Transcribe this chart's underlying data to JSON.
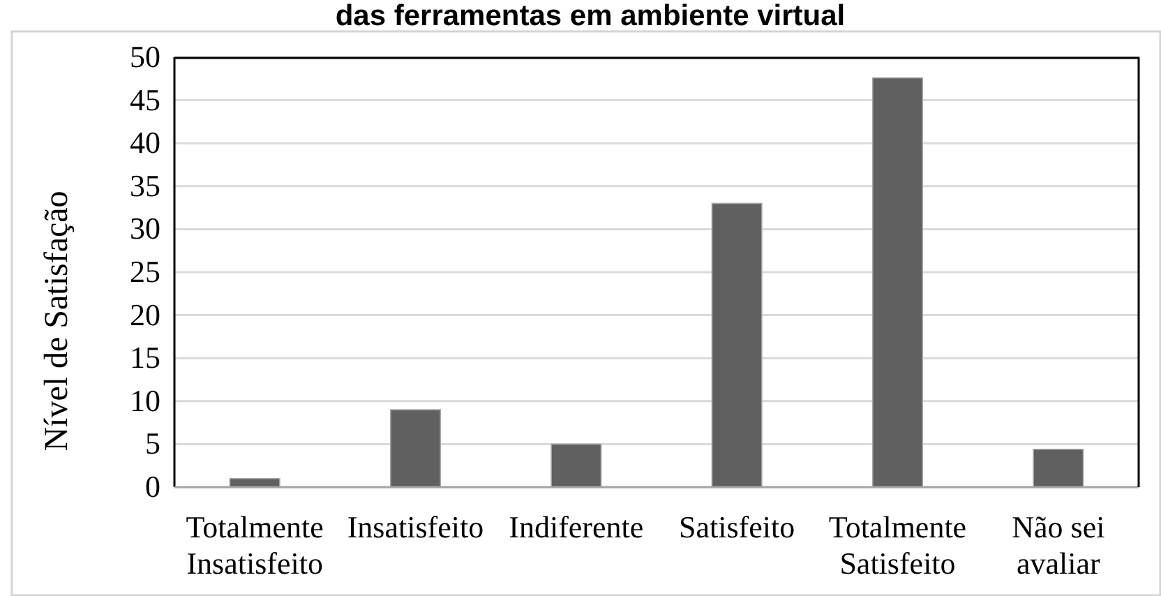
{
  "chart_data": {
    "type": "bar",
    "title": "das ferramentas em ambiente virtual",
    "ylabel": "Nível de Satisfação",
    "categories": [
      "Totalmente Insatisfeito",
      "Insatisfeito",
      "Indiferente",
      "Satisfeito",
      "Totalmente Satisfeito",
      "Não sei avaliar"
    ],
    "values": [
      1,
      9,
      5,
      33,
      47.6,
      4.4
    ],
    "color": "#606060",
    "ylim": [
      0,
      50
    ],
    "yticks": [
      0,
      5,
      10,
      15,
      20,
      25,
      30,
      35,
      40,
      45,
      50
    ],
    "grid": "y"
  }
}
